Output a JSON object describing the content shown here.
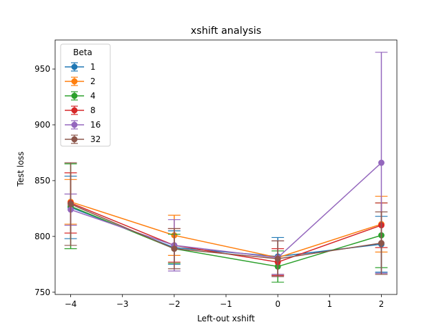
{
  "chart_data": {
    "type": "line",
    "title": "xshift analysis",
    "xlabel": "Left-out xshift",
    "ylabel": "Test loss",
    "x": [
      -4,
      -2,
      0,
      2
    ],
    "xlim": [
      -4.3,
      2.3
    ],
    "ylim": [
      748,
      976
    ],
    "xticks": [
      -4,
      -3,
      -2,
      -1,
      0,
      1,
      2
    ],
    "xtick_labels": [
      "−4",
      "−3",
      "−2",
      "−1",
      "0",
      "1",
      "2"
    ],
    "yticks": [
      750,
      800,
      850,
      900,
      950
    ],
    "ytick_labels": [
      "750",
      "800",
      "850",
      "900",
      "950"
    ],
    "grid": false,
    "legend": {
      "title": "Beta",
      "placement": "top-left"
    },
    "series": [
      {
        "name": "1",
        "color": "#1f77b4",
        "values": [
          826,
          790,
          782,
          793
        ],
        "errors": [
          28,
          15,
          17,
          25
        ]
      },
      {
        "name": "2",
        "color": "#ff7f0e",
        "values": [
          831,
          801,
          781,
          811
        ],
        "errors": [
          20,
          18,
          15,
          25
        ]
      },
      {
        "name": "4",
        "color": "#2ca02c",
        "values": [
          827,
          789,
          773,
          801
        ],
        "errors": [
          38,
          13,
          14,
          29
        ]
      },
      {
        "name": "8",
        "color": "#d62728",
        "values": [
          830,
          792,
          777,
          810
        ],
        "errors": [
          27,
          15,
          12,
          20
        ]
      },
      {
        "name": "16",
        "color": "#9467bd",
        "values": [
          824,
          792,
          781,
          866
        ],
        "errors": [
          14,
          23,
          15,
          99
        ]
      },
      {
        "name": "32",
        "color": "#8c564b",
        "values": [
          829,
          789,
          780,
          794
        ],
        "errors": [
          37,
          18,
          16,
          28
        ]
      }
    ]
  }
}
